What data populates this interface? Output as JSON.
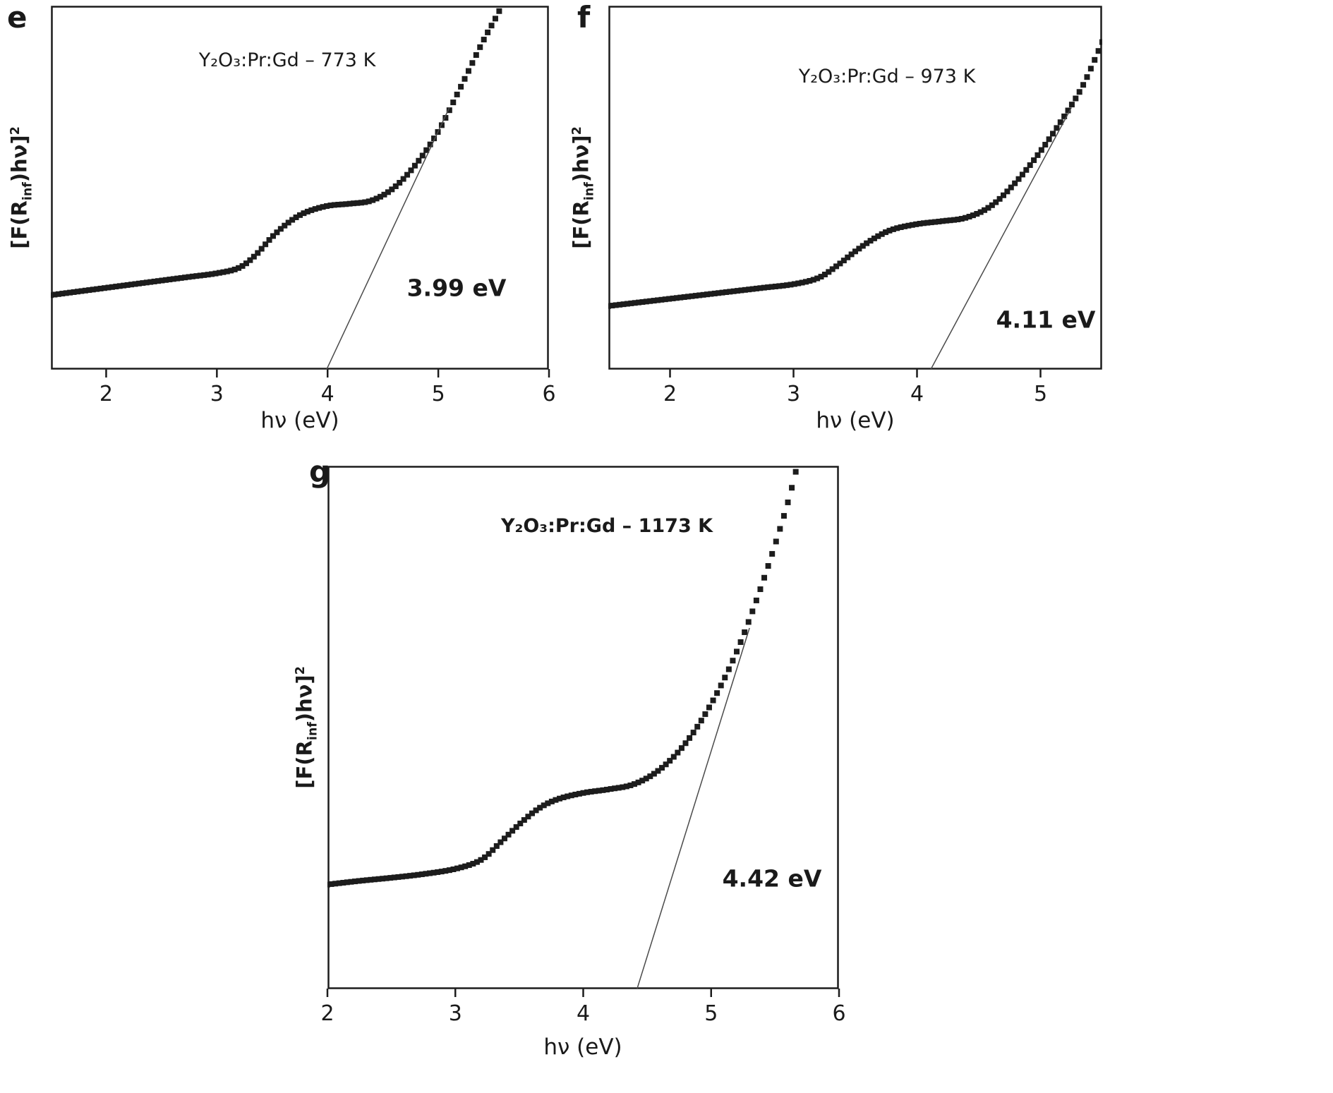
{
  "figure": {
    "background": "#ffffff",
    "marker_color": "#1c1c1c",
    "tangent_color": "#4a4a4a",
    "axis_color": "#1c1c1c",
    "xlabel": "hν (eV)",
    "ylabel": {
      "pre": "[F(R",
      "sub": "inf",
      "post": ")hν]",
      "sup": "2"
    }
  },
  "chart_data": [
    {
      "panel_label": "e",
      "type": "scatter",
      "title": "Y₂O₃:Pr:Gd – 773 K",
      "xlabel": "hν (eV)",
      "ylabel": "[F(R_inf)hν]²",
      "x_range": [
        1.5,
        6.0
      ],
      "x_ticks": [
        2,
        3,
        4,
        5,
        6
      ],
      "y_range": [
        0,
        1
      ],
      "y_ticks": [],
      "y_unit": "arbitrary units (unlabeled axis)",
      "band_gap_ev": 3.99,
      "band_gap_label": "3.99 eV",
      "points": [
        [
          1.5,
          0.205
        ],
        [
          1.75,
          0.215
        ],
        [
          2.0,
          0.225
        ],
        [
          2.25,
          0.235
        ],
        [
          2.5,
          0.245
        ],
        [
          2.75,
          0.255
        ],
        [
          3.0,
          0.265
        ],
        [
          3.2,
          0.28
        ],
        [
          3.35,
          0.315
        ],
        [
          3.5,
          0.365
        ],
        [
          3.65,
          0.405
        ],
        [
          3.8,
          0.432
        ],
        [
          4.0,
          0.45
        ],
        [
          4.2,
          0.456
        ],
        [
          4.4,
          0.465
        ],
        [
          4.6,
          0.5
        ],
        [
          4.8,
          0.565
        ],
        [
          5.0,
          0.655
        ],
        [
          5.2,
          0.775
        ],
        [
          5.4,
          0.9
        ],
        [
          5.55,
          0.985
        ],
        [
          5.65,
          1.06
        ]
      ],
      "tangent": {
        "x_intercept": 3.99,
        "x_end": 5.1,
        "y_end": 0.72
      }
    },
    {
      "panel_label": "f",
      "type": "scatter",
      "title": "Y₂O₃:Pr:Gd – 973 K",
      "xlabel": "hν (eV)",
      "ylabel": "[F(R_inf)hν]²",
      "x_range": [
        1.5,
        5.5
      ],
      "x_ticks": [
        2,
        3,
        4,
        5
      ],
      "y_range": [
        0,
        1
      ],
      "y_ticks": [],
      "y_unit": "arbitrary units (unlabeled axis)",
      "band_gap_ev": 4.11,
      "band_gap_label": "4.11 eV",
      "points": [
        [
          1.5,
          0.175
        ],
        [
          1.75,
          0.185
        ],
        [
          2.0,
          0.195
        ],
        [
          2.25,
          0.205
        ],
        [
          2.5,
          0.215
        ],
        [
          2.75,
          0.225
        ],
        [
          3.0,
          0.235
        ],
        [
          3.2,
          0.252
        ],
        [
          3.35,
          0.285
        ],
        [
          3.5,
          0.325
        ],
        [
          3.65,
          0.36
        ],
        [
          3.8,
          0.385
        ],
        [
          4.0,
          0.4
        ],
        [
          4.2,
          0.408
        ],
        [
          4.4,
          0.418
        ],
        [
          4.6,
          0.45
        ],
        [
          4.8,
          0.515
        ],
        [
          5.0,
          0.6
        ],
        [
          5.2,
          0.7
        ],
        [
          5.35,
          0.785
        ],
        [
          5.5,
          0.9
        ]
      ],
      "tangent": {
        "x_intercept": 4.11,
        "x_end": 5.25,
        "y_end": 0.72
      }
    },
    {
      "panel_label": "g",
      "type": "scatter",
      "title": "Y₂O₃:Pr:Gd – 1173 K",
      "xlabel": "hν (eV)",
      "ylabel": "[F(R_inf)hν]²",
      "x_range": [
        2.0,
        6.0
      ],
      "x_ticks": [
        2,
        3,
        4,
        5,
        6
      ],
      "y_range": [
        0,
        1
      ],
      "y_ticks": [],
      "y_unit": "arbitrary units (unlabeled axis)",
      "band_gap_ev": 4.42,
      "band_gap_label": "4.42 eV",
      "points": [
        [
          2.0,
          0.2
        ],
        [
          2.25,
          0.207
        ],
        [
          2.5,
          0.213
        ],
        [
          2.75,
          0.22
        ],
        [
          3.0,
          0.23
        ],
        [
          3.2,
          0.247
        ],
        [
          3.35,
          0.28
        ],
        [
          3.5,
          0.315
        ],
        [
          3.65,
          0.345
        ],
        [
          3.8,
          0.363
        ],
        [
          4.0,
          0.375
        ],
        [
          4.2,
          0.382
        ],
        [
          4.4,
          0.392
        ],
        [
          4.6,
          0.42
        ],
        [
          4.8,
          0.47
        ],
        [
          5.0,
          0.545
        ],
        [
          5.2,
          0.645
        ],
        [
          5.4,
          0.775
        ],
        [
          5.6,
          0.93
        ],
        [
          5.72,
          1.05
        ]
      ],
      "tangent": {
        "x_intercept": 4.42,
        "x_end": 5.3,
        "y_end": 0.69
      }
    }
  ]
}
